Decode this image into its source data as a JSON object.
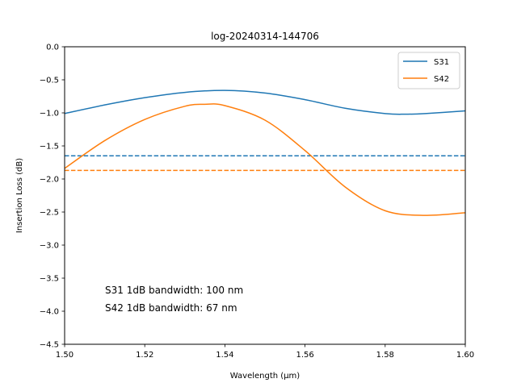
{
  "chart_data": {
    "type": "line",
    "title": "log-20240314-144706",
    "xlabel": "Wavelength (μm)",
    "ylabel": "Insertion Loss (dB)",
    "xlim": [
      1.5,
      1.6
    ],
    "ylim": [
      -4.5,
      0.0
    ],
    "x_ticks": [
      "1.50",
      "1.52",
      "1.54",
      "1.56",
      "1.58",
      "1.60"
    ],
    "y_ticks": [
      "0.0",
      "−0.5",
      "−1.0",
      "−1.5",
      "−2.0",
      "−2.5",
      "−3.0",
      "−3.5",
      "−4.0",
      "−4.5"
    ],
    "grid": false,
    "legend_position": "top-right",
    "series": [
      {
        "name": "S31",
        "color": "#1f77b4",
        "x": [
          1.5,
          1.51,
          1.52,
          1.53,
          1.54,
          1.55,
          1.56,
          1.57,
          1.58,
          1.585,
          1.59,
          1.6
        ],
        "y": [
          -1.01,
          -0.88,
          -0.77,
          -0.69,
          -0.66,
          -0.7,
          -0.8,
          -0.93,
          -1.01,
          -1.02,
          -1.01,
          -0.97
        ]
      },
      {
        "name": "S42",
        "color": "#ff7f0e",
        "x": [
          1.5,
          1.51,
          1.52,
          1.53,
          1.535,
          1.54,
          1.55,
          1.56,
          1.57,
          1.58,
          1.59,
          1.6
        ],
        "y": [
          -1.84,
          -1.42,
          -1.1,
          -0.9,
          -0.87,
          -0.89,
          -1.11,
          -1.57,
          -2.12,
          -2.48,
          -2.55,
          -2.51
        ]
      }
    ],
    "reference_lines": [
      {
        "series": "S31",
        "y": -1.65,
        "style": "dashed",
        "color": "#1f77b4"
      },
      {
        "series": "S42",
        "y": -1.87,
        "style": "dashed",
        "color": "#ff7f0e"
      }
    ],
    "annotations": [
      "S31 1dB bandwidth: 100 nm",
      "S42 1dB bandwidth: 67 nm"
    ]
  }
}
